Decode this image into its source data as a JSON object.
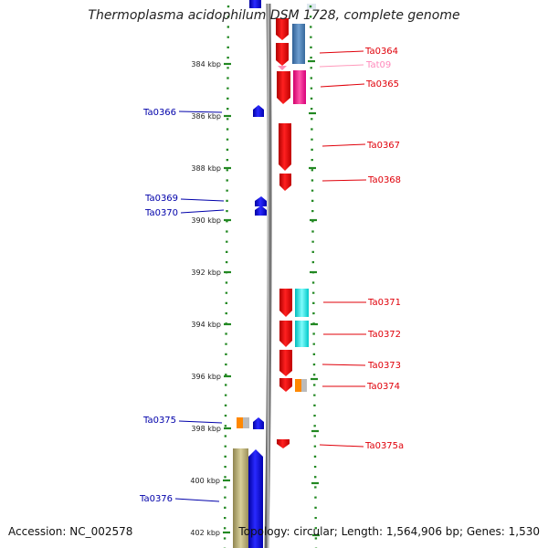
{
  "title": "Thermoplasma acidophilum DSM 1728, complete genome",
  "accession_text": "Accession: NC_002578",
  "summary_text": "Topology: circular; Length: 1,564,906 bp; Genes: 1,530",
  "ticks": [
    {
      "label": "384 kbp",
      "kbp": 384
    },
    {
      "label": "386 kbp",
      "kbp": 386
    },
    {
      "label": "388 kbp",
      "kbp": 388
    },
    {
      "label": "390 kbp",
      "kbp": 390
    },
    {
      "label": "392 kbp",
      "kbp": 392
    },
    {
      "label": "394 kbp",
      "kbp": 394
    },
    {
      "label": "396 kbp",
      "kbp": 396
    },
    {
      "label": "398 kbp",
      "kbp": 398
    },
    {
      "label": "400 kbp",
      "kbp": 400
    },
    {
      "label": "402 kbp",
      "kbp": 402
    }
  ],
  "right_genes": [
    {
      "name": "Ta0364",
      "color": "#e0000a"
    },
    {
      "name": "Tat09",
      "color": "#ff88bb"
    },
    {
      "name": "Ta0365",
      "color": "#e0000a"
    },
    {
      "name": "Ta0367",
      "color": "#e0000a"
    },
    {
      "name": "Ta0368",
      "color": "#e0000a"
    },
    {
      "name": "Ta0371",
      "color": "#e0000a"
    },
    {
      "name": "Ta0372",
      "color": "#e0000a"
    },
    {
      "name": "Ta0373",
      "color": "#e0000a"
    },
    {
      "name": "Ta0374",
      "color": "#e0000a"
    },
    {
      "name": "Ta0375a",
      "color": "#e0000a"
    }
  ],
  "left_genes": [
    {
      "name": "Ta0366",
      "color": "#0000aa"
    },
    {
      "name": "Ta0369",
      "color": "#0000aa"
    },
    {
      "name": "Ta0370",
      "color": "#0000aa"
    },
    {
      "name": "Ta0375",
      "color": "#0000aa"
    },
    {
      "name": "Ta0376",
      "color": "#0000aa"
    }
  ],
  "colors": {
    "forward_cds": "#ff0000",
    "reverse_cds": "#0000ff",
    "backbone": "#888888",
    "ticks": "#228822",
    "cog_blue": "#4a7fb5",
    "cog_pink": "#ff3399",
    "cog_cyan": "#00e5e5",
    "cog_orange": "#ff8800",
    "cog_tan": "#b5a86a"
  }
}
